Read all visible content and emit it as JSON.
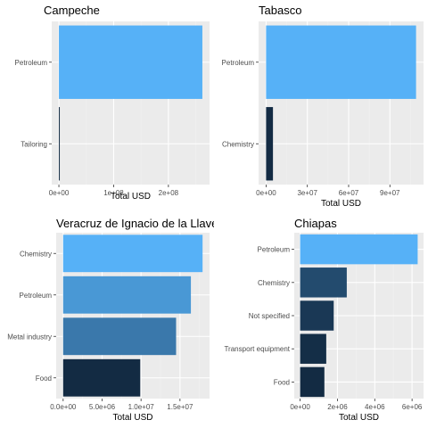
{
  "colors": {
    "panel_bg": "#ebebeb",
    "grid_major": "#ffffff",
    "grid_minor": "#f2f2f2",
    "low": "#132b43",
    "high": "#56b1f7"
  },
  "chart_data": [
    {
      "type": "bar",
      "orientation": "horizontal",
      "title": "Campeche",
      "xlabel": "Total USD",
      "ylabel": "",
      "categories": [
        "Petroleum",
        "Tailoring"
      ],
      "values": [
        262000000,
        1500000
      ],
      "xlim": [
        -13100000,
        275100000
      ],
      "x_ticks": [
        0,
        100000000,
        200000000
      ],
      "x_tick_labels": [
        "0e+00",
        "1e+08",
        "2e+08"
      ],
      "grid": true
    },
    {
      "type": "bar",
      "orientation": "horizontal",
      "title": "Tabasco",
      "xlabel": "Total USD",
      "ylabel": "",
      "categories": [
        "Petroleum",
        "Chemistry"
      ],
      "values": [
        109000000,
        5000000
      ],
      "xlim": [
        -5450000,
        114450000
      ],
      "x_ticks": [
        0,
        30000000,
        60000000,
        90000000
      ],
      "x_tick_labels": [
        "0e+00",
        "3e+07",
        "6e+07",
        "9e+07"
      ],
      "grid": true
    },
    {
      "type": "bar",
      "orientation": "horizontal",
      "title": "Veracruz de Ignacio de la Llave",
      "xlabel": "Total USD",
      "ylabel": "",
      "categories": [
        "Chemistry",
        "Petroleum",
        "Metal industry",
        "Food"
      ],
      "values": [
        17900000,
        16400000,
        14500000,
        9900000
      ],
      "xlim": [
        -895000,
        18795000
      ],
      "x_ticks": [
        0,
        5000000,
        10000000,
        15000000
      ],
      "x_tick_labels": [
        "0.0e+00",
        "5.0e+06",
        "1.0e+07",
        "1.5e+07"
      ],
      "grid": true
    },
    {
      "type": "bar",
      "orientation": "horizontal",
      "title": "Chiapas",
      "xlabel": "Total USD",
      "ylabel": "",
      "categories": [
        "Petroleum",
        "Chemistry",
        "Not specified",
        "Transport equipment",
        "Food"
      ],
      "values": [
        6300000,
        2500000,
        1800000,
        1400000,
        1300000
      ],
      "xlim": [
        -315000,
        6615000
      ],
      "x_ticks": [
        0,
        2000000,
        4000000,
        6000000
      ],
      "x_tick_labels": [
        "0e+00",
        "2e+06",
        "4e+06",
        "6e+06"
      ],
      "grid": true
    }
  ]
}
